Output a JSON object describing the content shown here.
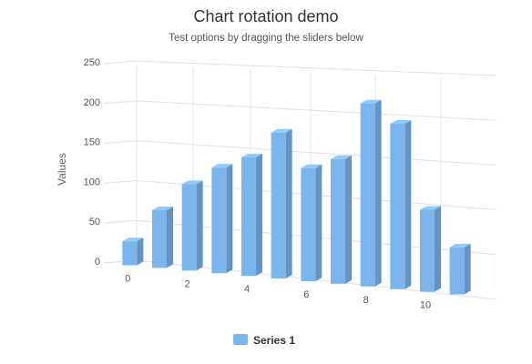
{
  "chart_data": {
    "type": "bar",
    "title": "Chart rotation demo",
    "subtitle": "Test options by dragging the sliders below",
    "ylabel": "Values",
    "ylim": [
      0,
      250
    ],
    "yticks": [
      0,
      50,
      100,
      150,
      200,
      250
    ],
    "x": [
      0,
      1,
      2,
      3,
      4,
      5,
      6,
      7,
      8,
      9,
      10,
      11
    ],
    "xtick_labels": [
      "0",
      "2",
      "4",
      "6",
      "8",
      "10"
    ],
    "grid": true,
    "legend": "bottom-center",
    "series": [
      {
        "name": "Series 1",
        "color": "#7cb5ec",
        "values": [
          29.9,
          71.5,
          106.4,
          129.2,
          144.0,
          176.0,
          135.6,
          148.5,
          216.4,
          194.1,
          95.6,
          54.4
        ]
      }
    ]
  }
}
